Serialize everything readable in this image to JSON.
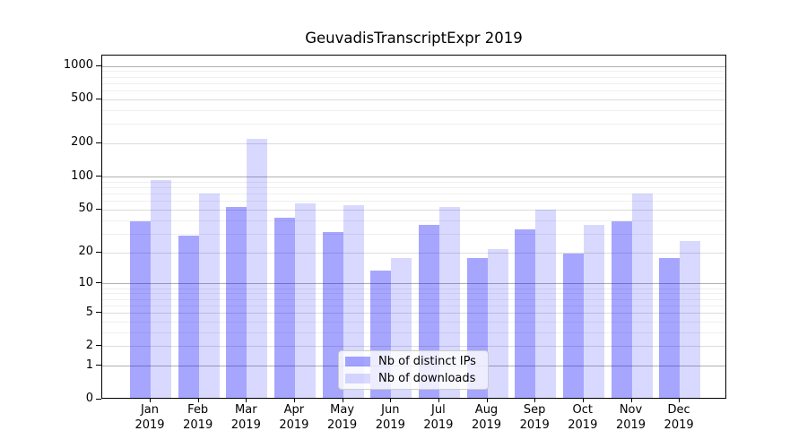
{
  "chart_data": {
    "type": "bar",
    "title": "GeuvadisTranscriptExpr 2019",
    "categories": [
      "Jan",
      "Feb",
      "Mar",
      "Apr",
      "May",
      "Jun",
      "Jul",
      "Aug",
      "Sep",
      "Oct",
      "Nov",
      "Dec"
    ],
    "category_year": "2019",
    "series": [
      {
        "name": "Nb of distinct IPs",
        "color": "rgba(0,0,255,0.35)",
        "values": [
          38,
          28,
          51,
          41,
          30,
          13,
          35,
          17,
          32,
          19,
          38,
          17
        ]
      },
      {
        "name": "Nb of downloads",
        "color": "rgba(0,0,255,0.15)",
        "values": [
          90,
          68,
          215,
          55,
          53,
          17,
          51,
          21,
          48,
          35,
          68,
          25
        ]
      }
    ],
    "xlabel": "",
    "ylabel": "",
    "yscale": "log1p",
    "ylim": [
      0,
      1250
    ],
    "yticks": [
      0,
      1,
      2,
      5,
      10,
      20,
      50,
      100,
      200,
      500,
      1000
    ],
    "grid": "horizontal",
    "legend_position": "lower center",
    "colors": {
      "major_grid": "#b0b0b0",
      "mid_grid": "#dcdcdc",
      "minor_grid": "#efefef",
      "spine": "#000000"
    }
  }
}
